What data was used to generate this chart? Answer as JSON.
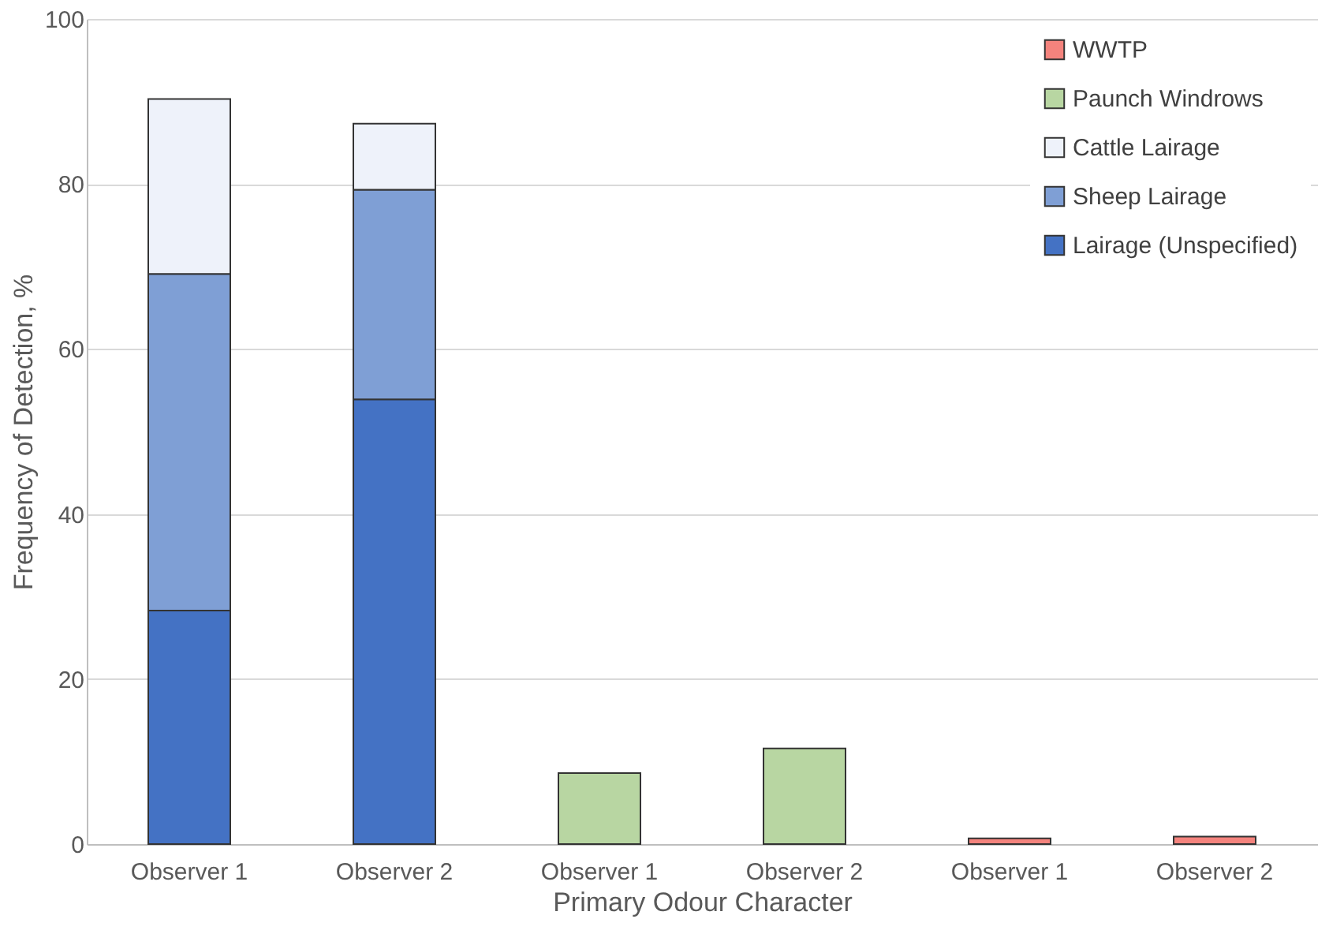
{
  "chart_data": {
    "type": "bar",
    "stacked": true,
    "xlabel": "Primary Odour Character",
    "ylabel": "Frequency of Detection, %",
    "categories": [
      "Observer 1",
      "Observer 2",
      "Observer 1",
      "Observer 2",
      "Observer 1",
      "Observer 2"
    ],
    "series": [
      {
        "name": "Lairage (Unspecified)",
        "color": "#4472c4",
        "values": [
          28.3,
          53.9,
          null,
          null,
          null,
          null
        ]
      },
      {
        "name": "Sheep Lairage",
        "color": "#7f9fd5",
        "values": [
          40.8,
          25.4,
          null,
          null,
          null,
          null
        ]
      },
      {
        "name": "Cattle Lairage",
        "color": "#eef2fa",
        "values": [
          21.2,
          8.0,
          null,
          null,
          null,
          null
        ]
      },
      {
        "name": "Paunch Windrows",
        "color": "#b8d6a2",
        "values": [
          null,
          null,
          8.6,
          11.6,
          null,
          null
        ]
      },
      {
        "name": "WWTP",
        "color": "#f4837d",
        "values": [
          null,
          null,
          null,
          null,
          0.7,
          0.9
        ]
      }
    ],
    "ylim": [
      0,
      100
    ],
    "yticks": [
      0,
      20,
      40,
      60,
      80,
      100
    ],
    "grid": "y",
    "legend": "top right"
  }
}
